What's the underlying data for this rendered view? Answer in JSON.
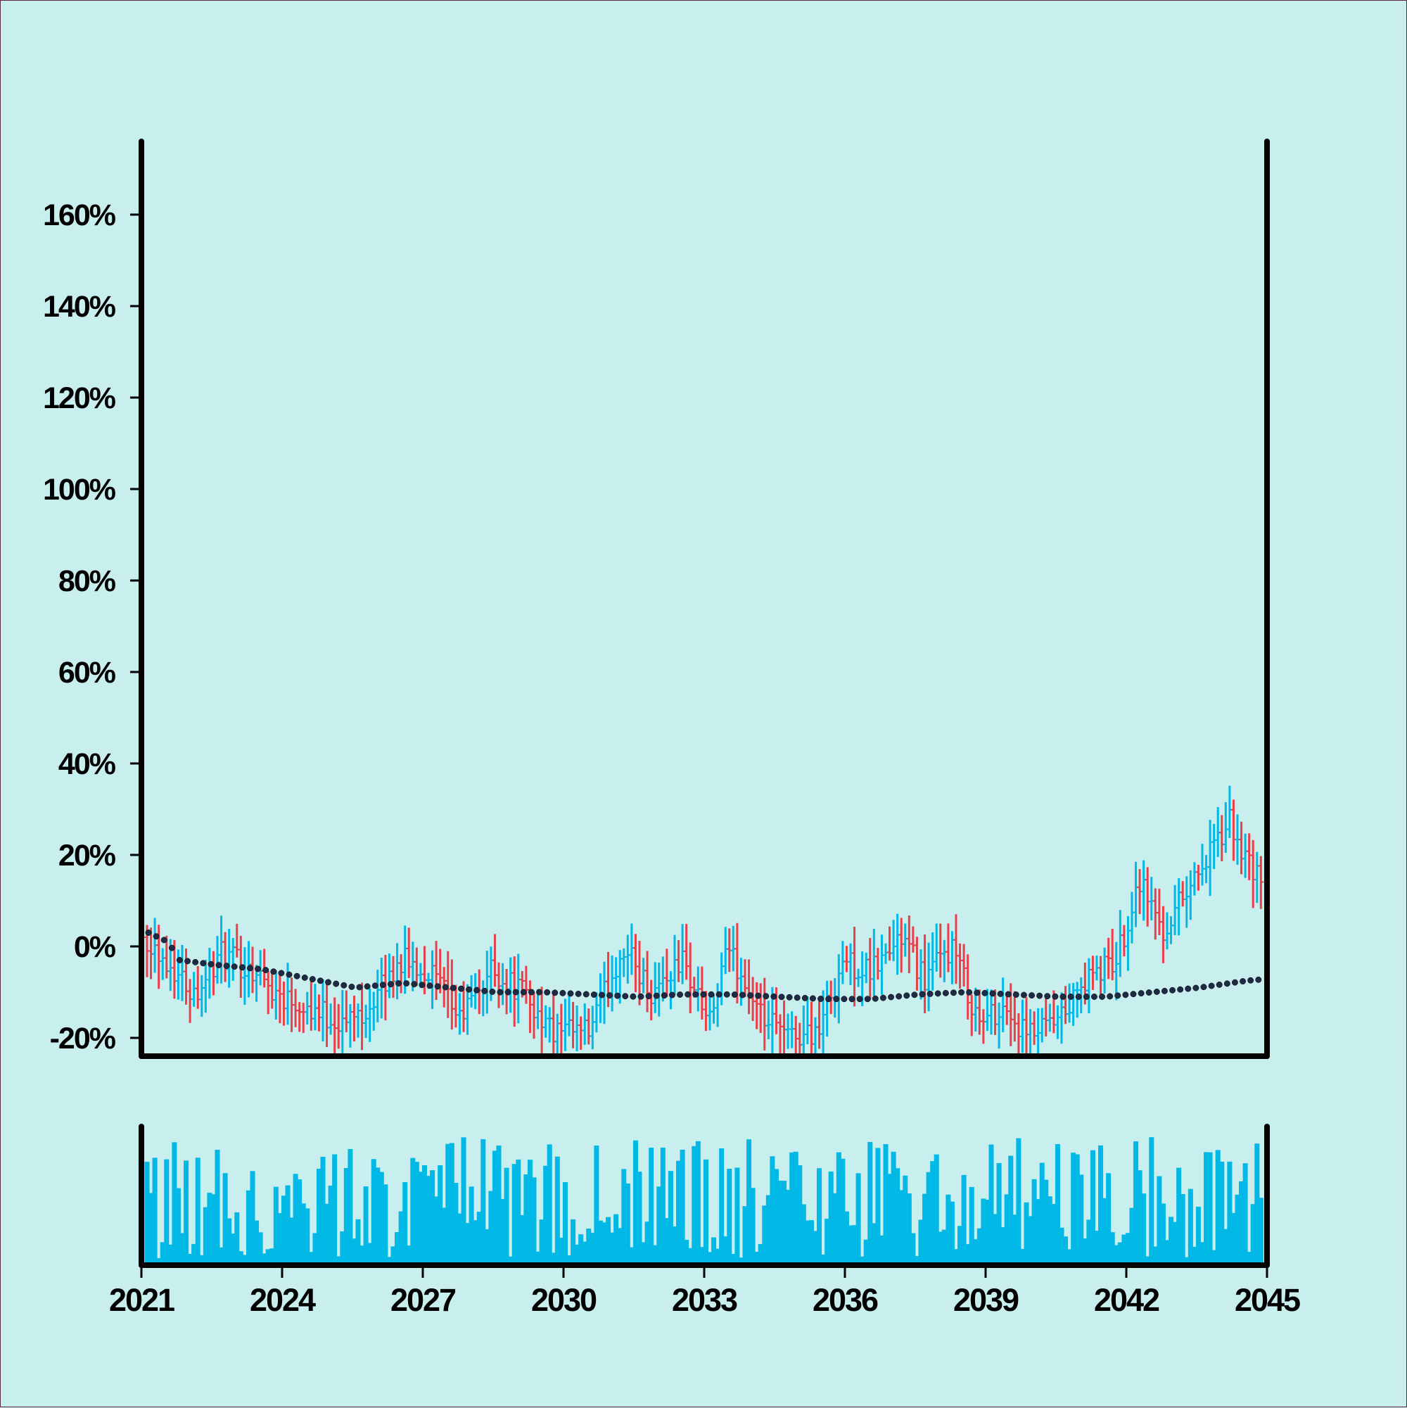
{
  "colors": {
    "background": "#c9eeee",
    "up": "#00b8e6",
    "down": "#e8404a",
    "ma_line": "#1f2a44",
    "volume": "#00b8e6",
    "axis": "#000000"
  },
  "chart_data": {
    "type": "ohlc",
    "title": "",
    "xlabel": "",
    "ylabel": "",
    "x_ticks": [
      "2021",
      "2024",
      "2027",
      "2030",
      "2033",
      "2036",
      "2039",
      "2042",
      "2045"
    ],
    "x_range": [
      "2021-01",
      "2045-01"
    ],
    "y_ticks": [
      "-20%",
      "0%",
      "20%",
      "40%",
      "60%",
      "80%",
      "100%",
      "120%",
      "140%",
      "160%"
    ],
    "ylim": [
      -24,
      176
    ],
    "period": "monthly",
    "series_anchors": [
      {
        "date": "2021-01",
        "close": 2
      },
      {
        "date": "2021-06",
        "close": -3
      },
      {
        "date": "2022-01",
        "close": -10
      },
      {
        "date": "2022-08",
        "close": -2
      },
      {
        "date": "2023-04",
        "close": -5
      },
      {
        "date": "2023-10",
        "close": -10
      },
      {
        "date": "2024-06",
        "close": -13
      },
      {
        "date": "2025-03",
        "close": -17
      },
      {
        "date": "2025-10",
        "close": -13
      },
      {
        "date": "2026-06",
        "close": -3
      },
      {
        "date": "2027-02",
        "close": -6
      },
      {
        "date": "2027-09",
        "close": -16
      },
      {
        "date": "2028-05",
        "close": -5
      },
      {
        "date": "2029-01",
        "close": -10
      },
      {
        "date": "2029-09",
        "close": -19
      },
      {
        "date": "2030-06",
        "close": -19
      },
      {
        "date": "2031-03",
        "close": 0
      },
      {
        "date": "2031-10",
        "close": -10
      },
      {
        "date": "2032-06",
        "close": -3
      },
      {
        "date": "2033-01",
        "close": -17
      },
      {
        "date": "2033-06",
        "close": 0
      },
      {
        "date": "2034-01",
        "close": -15
      },
      {
        "date": "2034-09",
        "close": -20
      },
      {
        "date": "2035-05",
        "close": -18
      },
      {
        "date": "2035-11",
        "close": -3
      },
      {
        "date": "2036-06",
        "close": -6
      },
      {
        "date": "2037-02",
        "close": 2
      },
      {
        "date": "2037-08",
        "close": -7
      },
      {
        "date": "2038-03",
        "close": 0
      },
      {
        "date": "2038-10",
        "close": -17
      },
      {
        "date": "2039-04",
        "close": -13
      },
      {
        "date": "2039-10",
        "close": -20
      },
      {
        "date": "2040-06",
        "close": -17
      },
      {
        "date": "2041-01",
        "close": -8
      },
      {
        "date": "2041-09",
        "close": -3
      },
      {
        "date": "2042-03",
        "close": 15
      },
      {
        "date": "2042-09",
        "close": 3
      },
      {
        "date": "2043-03",
        "close": 13
      },
      {
        "date": "2043-09",
        "close": 20
      },
      {
        "date": "2044-02",
        "close": 27
      },
      {
        "date": "2044-08",
        "close": 15
      },
      {
        "date": "2045-01",
        "close": 17
      }
    ],
    "moving_average": [
      {
        "date": "2021-01",
        "value": 3
      },
      {
        "date": "2021-06",
        "value": 1
      },
      {
        "date": "2021-09",
        "value": -3
      },
      {
        "date": "2022-06",
        "value": -4
      },
      {
        "date": "2023-06",
        "value": -5
      },
      {
        "date": "2024-06",
        "value": -7
      },
      {
        "date": "2025-06",
        "value": -9
      },
      {
        "date": "2026-06",
        "value": -8
      },
      {
        "date": "2027-06",
        "value": -9
      },
      {
        "date": "2028-06",
        "value": -10
      },
      {
        "date": "2029-06",
        "value": -10
      },
      {
        "date": "2030-06",
        "value": -10.5
      },
      {
        "date": "2031-06",
        "value": -11
      },
      {
        "date": "2032-06",
        "value": -10.5
      },
      {
        "date": "2033-06",
        "value": -10.5
      },
      {
        "date": "2034-06",
        "value": -11
      },
      {
        "date": "2035-06",
        "value": -11.5
      },
      {
        "date": "2036-06",
        "value": -11.5
      },
      {
        "date": "2037-06",
        "value": -10.5
      },
      {
        "date": "2038-06",
        "value": -10
      },
      {
        "date": "2039-06",
        "value": -10.5
      },
      {
        "date": "2040-06",
        "value": -11
      },
      {
        "date": "2041-06",
        "value": -11
      },
      {
        "date": "2042-06",
        "value": -10
      },
      {
        "date": "2043-06",
        "value": -9
      },
      {
        "date": "2044-06",
        "value": -7.5
      },
      {
        "date": "2045-01",
        "value": -7
      }
    ]
  }
}
